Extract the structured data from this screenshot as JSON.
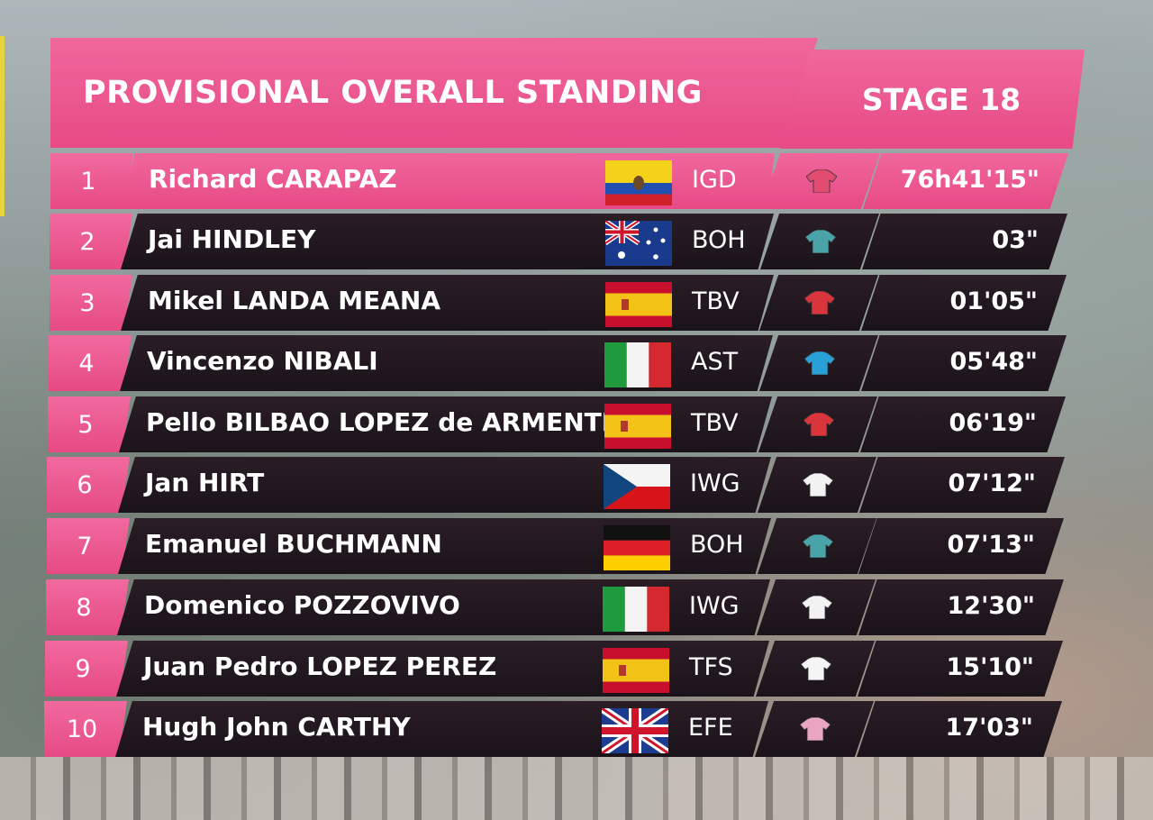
{
  "header": {
    "title": "PROVISIONAL OVERALL STANDING",
    "stage": "STAGE 18"
  },
  "colors": {
    "pink": "#e74a86",
    "dark_row": "#1f161d",
    "text": "#ffffff"
  },
  "standings": [
    {
      "pos": "1",
      "name": "Richard CARAPAZ",
      "flag": "ecuador-flag",
      "team": "IGD",
      "jersey_color": "#e24c70",
      "time": "76h41'15\""
    },
    {
      "pos": "2",
      "name": "Jai HINDLEY",
      "flag": "australia-flag",
      "team": "BOH",
      "jersey_color": "#4aa3a8",
      "time": "03\""
    },
    {
      "pos": "3",
      "name": "Mikel LANDA MEANA",
      "flag": "spain-flag",
      "team": "TBV",
      "jersey_color": "#d8363c",
      "time": "01'05\""
    },
    {
      "pos": "4",
      "name": "Vincenzo NIBALI",
      "flag": "italy-flag",
      "team": "AST",
      "jersey_color": "#2aa0d8",
      "time": "05'48\""
    },
    {
      "pos": "5",
      "name": "Pello BILBAO LOPEZ de ARMENTIA",
      "flag": "spain-flag",
      "team": "TBV",
      "jersey_color": "#d8363c",
      "time": "06'19\""
    },
    {
      "pos": "6",
      "name": "Jan HIRT",
      "flag": "czech-flag",
      "team": "IWG",
      "jersey_color": "#f2f2f2",
      "time": "07'12\""
    },
    {
      "pos": "7",
      "name": "Emanuel BUCHMANN",
      "flag": "germany-flag",
      "team": "BOH",
      "jersey_color": "#4aa3a8",
      "time": "07'13\""
    },
    {
      "pos": "8",
      "name": "Domenico POZZOVIVO",
      "flag": "italy-flag",
      "team": "IWG",
      "jersey_color": "#f2f2f2",
      "time": "12'30\""
    },
    {
      "pos": "9",
      "name": "Juan Pedro LOPEZ PEREZ",
      "flag": "spain-flag",
      "team": "TFS",
      "jersey_color": "#f5f5f5",
      "time": "15'10\""
    },
    {
      "pos": "10",
      "name": "Hugh John CARTHY",
      "flag": "uk-flag",
      "team": "EFE",
      "jersey_color": "#e9a6c2",
      "time": "17'03\""
    }
  ]
}
